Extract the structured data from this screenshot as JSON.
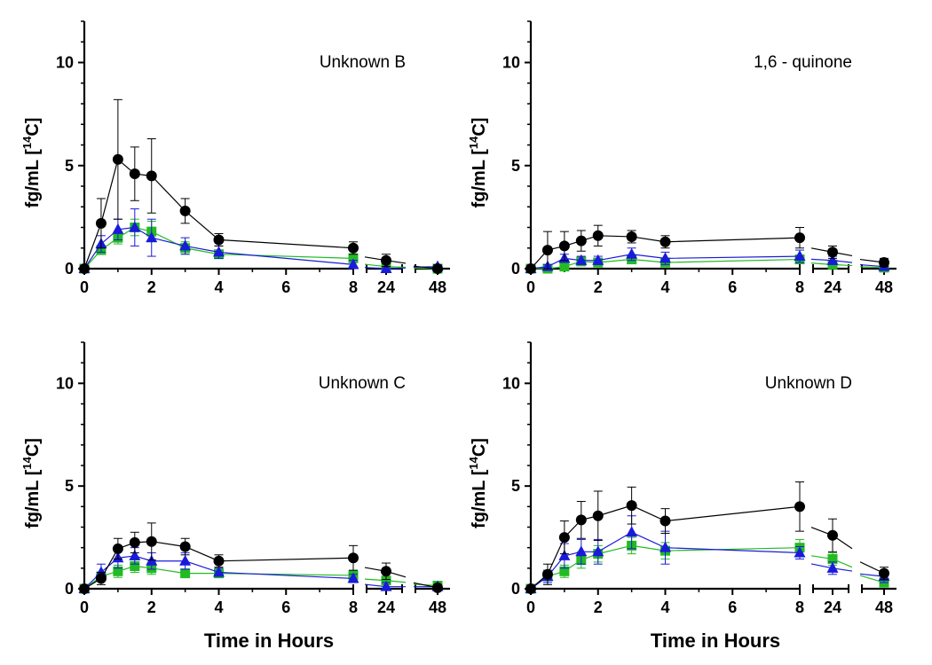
{
  "chart_data": [
    {
      "type": "line",
      "title": "Unknown B",
      "ylabel": "fg/mL [14C]",
      "ylabel_parts": {
        "pre": "fg/mL [",
        "sup": "14",
        "post": "C]"
      },
      "xlabel": "",
      "yticks": [
        0,
        5,
        10
      ],
      "ylim": [
        0,
        12
      ],
      "x_segments": [
        {
          "range": [
            0,
            8
          ],
          "ticks": [
            0,
            2,
            4,
            6,
            8
          ]
        },
        {
          "ticks": [
            24
          ]
        },
        {
          "ticks": [
            48
          ]
        }
      ],
      "x": [
        0,
        0.5,
        1,
        1.5,
        2,
        3,
        4,
        8,
        24,
        48
      ],
      "series": [
        {
          "name": "black",
          "color": "#000000",
          "marker": "circle",
          "values": [
            0,
            2.2,
            5.3,
            4.6,
            4.5,
            2.8,
            1.4,
            1.0,
            0.4,
            0.0
          ],
          "errors": [
            0,
            1.2,
            2.9,
            1.3,
            1.8,
            0.6,
            0.3,
            0.3,
            0.3,
            0.1
          ]
        },
        {
          "name": "blue",
          "color": "#1a1adb",
          "marker": "triangle",
          "values": [
            0,
            1.2,
            1.9,
            2.0,
            1.5,
            1.1,
            0.8,
            0.2,
            0.0,
            0.1
          ],
          "errors": [
            0,
            0.4,
            0.5,
            0.9,
            0.9,
            0.4,
            0.3,
            0.2,
            0.1,
            0.1
          ]
        },
        {
          "name": "green",
          "color": "#22bb22",
          "marker": "square",
          "values": [
            0,
            0.9,
            1.5,
            2.0,
            1.8,
            1.0,
            0.7,
            0.5,
            0.1,
            0.0
          ],
          "errors": [
            0,
            0.2,
            0.3,
            0.4,
            0.5,
            0.3,
            0.2,
            0.1,
            0.1,
            0.1
          ]
        }
      ]
    },
    {
      "type": "line",
      "title": "1,6 - quinone",
      "ylabel": "fg/mL [14C]",
      "ylabel_parts": {
        "pre": "fg/mL [",
        "sup": "14",
        "post": "C]"
      },
      "xlabel": "",
      "yticks": [
        0,
        5,
        10
      ],
      "ylim": [
        0,
        12
      ],
      "x_segments": [
        {
          "range": [
            0,
            8
          ],
          "ticks": [
            0,
            2,
            4,
            6,
            8
          ]
        },
        {
          "ticks": [
            24
          ]
        },
        {
          "ticks": [
            48
          ]
        }
      ],
      "x": [
        0,
        0.5,
        1,
        1.5,
        2,
        3,
        4,
        8,
        24,
        48
      ],
      "series": [
        {
          "name": "black",
          "color": "#000000",
          "marker": "circle",
          "values": [
            0,
            0.9,
            1.1,
            1.35,
            1.6,
            1.55,
            1.3,
            1.5,
            0.8,
            0.3
          ],
          "errors": [
            0,
            0.9,
            0.7,
            0.5,
            0.5,
            0.3,
            0.3,
            0.5,
            0.3,
            0.2
          ]
        },
        {
          "name": "blue",
          "color": "#1a1adb",
          "marker": "triangle",
          "values": [
            0,
            0.1,
            0.5,
            0.4,
            0.4,
            0.7,
            0.5,
            0.6,
            0.4,
            0.1
          ],
          "errors": [
            0,
            0.1,
            0.2,
            0.2,
            0.2,
            0.3,
            0.3,
            0.3,
            0.2,
            0.1
          ]
        },
        {
          "name": "green",
          "color": "#22bb22",
          "marker": "square",
          "values": [
            0,
            0.0,
            0.1,
            0.35,
            0.3,
            0.45,
            0.3,
            0.45,
            0.2,
            0.05
          ],
          "errors": [
            0,
            0.05,
            0.1,
            0.1,
            0.1,
            0.1,
            0.1,
            0.1,
            0.1,
            0.05
          ]
        }
      ]
    },
    {
      "type": "line",
      "title": "Unknown C",
      "ylabel": "fg/mL [14C]",
      "ylabel_parts": {
        "pre": "fg/mL [",
        "sup": "14",
        "post": "C]"
      },
      "xlabel": "Time in Hours",
      "yticks": [
        0,
        5,
        10
      ],
      "ylim": [
        0,
        12
      ],
      "x_segments": [
        {
          "range": [
            0,
            8
          ],
          "ticks": [
            0,
            2,
            4,
            6,
            8
          ]
        },
        {
          "ticks": [
            24
          ]
        },
        {
          "ticks": [
            48
          ]
        }
      ],
      "x": [
        0,
        0.5,
        1,
        1.5,
        2,
        3,
        4,
        8,
        24,
        48
      ],
      "series": [
        {
          "name": "black",
          "color": "#000000",
          "marker": "circle",
          "values": [
            0,
            0.5,
            1.95,
            2.25,
            2.3,
            2.05,
            1.35,
            1.5,
            0.85,
            0.05
          ],
          "errors": [
            0,
            0.3,
            0.5,
            0.5,
            0.9,
            0.4,
            0.3,
            0.6,
            0.4,
            0.1
          ]
        },
        {
          "name": "blue",
          "color": "#1a1adb",
          "marker": "triangle",
          "values": [
            0,
            0.8,
            1.5,
            1.6,
            1.35,
            1.35,
            0.8,
            0.5,
            0.1,
            0.1
          ],
          "errors": [
            0,
            0.4,
            0.5,
            0.4,
            0.4,
            0.4,
            0.2,
            0.2,
            0.2,
            0.1
          ]
        },
        {
          "name": "green",
          "color": "#22bb22",
          "marker": "square",
          "values": [
            0,
            0.6,
            0.85,
            1.1,
            1.0,
            0.75,
            0.75,
            0.65,
            0.4,
            0.15
          ],
          "errors": [
            0,
            0.2,
            0.3,
            0.3,
            0.3,
            0.2,
            0.2,
            0.2,
            0.2,
            0.1
          ]
        }
      ]
    },
    {
      "type": "line",
      "title": "Unknown D",
      "ylabel": "fg/mL [14C]",
      "ylabel_parts": {
        "pre": "fg/mL [",
        "sup": "14",
        "post": "C]"
      },
      "xlabel": "Time in Hours",
      "yticks": [
        0,
        5,
        10
      ],
      "ylim": [
        0,
        12
      ],
      "x_segments": [
        {
          "range": [
            0,
            8
          ],
          "ticks": [
            0,
            2,
            4,
            6,
            8
          ]
        },
        {
          "ticks": [
            24
          ]
        },
        {
          "ticks": [
            48
          ]
        }
      ],
      "x": [
        0,
        0.5,
        1,
        1.5,
        2,
        3,
        4,
        8,
        24,
        48
      ],
      "series": [
        {
          "name": "black",
          "color": "#000000",
          "marker": "circle",
          "values": [
            0,
            0.7,
            2.5,
            3.35,
            3.55,
            4.05,
            3.3,
            4.0,
            2.6,
            0.75
          ],
          "errors": [
            0,
            0.5,
            0.8,
            0.9,
            1.2,
            0.9,
            0.6,
            1.2,
            0.8,
            0.3
          ]
        },
        {
          "name": "blue",
          "color": "#1a1adb",
          "marker": "triangle",
          "values": [
            0,
            0.6,
            1.6,
            1.8,
            1.8,
            2.75,
            2.0,
            1.75,
            1.0,
            0.6
          ],
          "errors": [
            0,
            0.3,
            0.6,
            0.6,
            0.6,
            0.8,
            0.8,
            0.3,
            0.3,
            0.3
          ]
        },
        {
          "name": "green",
          "color": "#22bb22",
          "marker": "square",
          "values": [
            0,
            0.6,
            0.85,
            1.4,
            1.7,
            2.1,
            1.85,
            2.0,
            1.45,
            0.3
          ],
          "errors": [
            0,
            0.2,
            0.3,
            0.4,
            0.4,
            0.4,
            0.4,
            0.4,
            0.3,
            0.1
          ]
        }
      ]
    }
  ]
}
